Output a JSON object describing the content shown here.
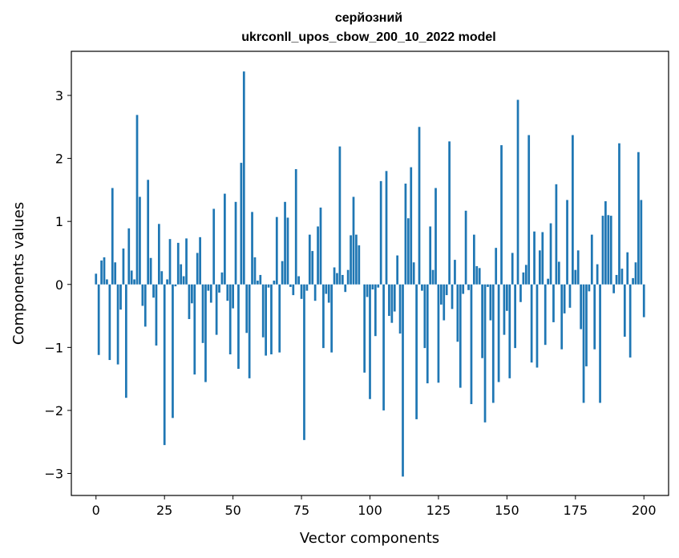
{
  "chart_data": {
    "type": "bar",
    "title_line1": "серйозний",
    "title_line2": "ukrconll_upos_cbow_200_10_2022 model",
    "xlabel": "Vector components",
    "ylabel": "Components values",
    "xlim": [
      -9,
      209
    ],
    "ylim": [
      -3.35,
      3.7
    ],
    "xticks": [
      0,
      25,
      50,
      75,
      100,
      125,
      150,
      175,
      200
    ],
    "xtick_labels": [
      "0",
      "25",
      "50",
      "75",
      "100",
      "125",
      "150",
      "175",
      "200"
    ],
    "yticks": [
      -3,
      -2,
      -1,
      0,
      1,
      2,
      3
    ],
    "ytick_labels": [
      "−3",
      "−2",
      "−1",
      "0",
      "1",
      "2",
      "3"
    ],
    "bar_color": "#1f77b4",
    "grid": false,
    "values": [
      0.17,
      -1.12,
      0.38,
      0.43,
      0.08,
      -1.2,
      1.53,
      0.35,
      -1.27,
      -0.4,
      0.57,
      -1.8,
      0.89,
      0.22,
      0.08,
      2.69,
      1.39,
      -0.34,
      -0.67,
      1.66,
      0.42,
      -0.21,
      -0.97,
      0.96,
      0.21,
      -2.55,
      0.08,
      0.72,
      -2.12,
      -0.03,
      0.66,
      0.32,
      0.13,
      0.73,
      -0.55,
      -0.3,
      -1.43,
      0.5,
      0.75,
      -0.93,
      -1.55,
      -0.1,
      -0.29,
      1.2,
      -0.8,
      -0.13,
      0.19,
      1.44,
      -0.26,
      -1.11,
      -0.38,
      1.31,
      -1.34,
      1.93,
      3.38,
      -0.77,
      -1.49,
      1.15,
      0.43,
      0.06,
      0.15,
      -0.84,
      -1.13,
      -0.05,
      -1.11,
      0.06,
      1.07,
      -1.08,
      0.37,
      1.31,
      1.06,
      -0.04,
      -0.17,
      1.83,
      0.13,
      -0.23,
      -2.47,
      -0.1,
      0.79,
      0.53,
      -0.26,
      0.92,
      1.22,
      -1.01,
      -0.15,
      -0.29,
      -1.08,
      0.27,
      0.18,
      2.19,
      0.15,
      -0.12,
      0.23,
      0.78,
      1.39,
      0.79,
      0.62,
      0.0,
      -1.4,
      -0.2,
      -1.82,
      -0.08,
      -0.82,
      -0.05,
      1.64,
      -2.0,
      1.8,
      -0.5,
      -0.61,
      -0.43,
      0.46,
      -0.78,
      -3.05,
      1.6,
      1.05,
      1.86,
      0.35,
      -2.14,
      2.5,
      -0.1,
      -1.01,
      -1.57,
      0.92,
      0.23,
      1.53,
      -1.56,
      -0.32,
      -0.57,
      -0.17,
      2.27,
      -0.39,
      0.39,
      -0.91,
      -1.64,
      -0.15,
      1.17,
      -0.09,
      -1.9,
      0.79,
      0.29,
      0.26,
      -1.17,
      -2.19,
      -0.04,
      -0.57,
      -1.88,
      0.58,
      -1.55,
      2.21,
      -0.8,
      -0.42,
      -1.49,
      0.5,
      -1.01,
      2.93,
      -0.28,
      0.19,
      0.31,
      2.37,
      -1.24,
      0.84,
      -1.32,
      0.54,
      0.83,
      -0.96,
      0.09,
      0.97,
      -0.6,
      1.59,
      0.36,
      -1.03,
      -0.46,
      1.34,
      -0.37,
      2.37,
      0.23,
      0.54,
      -0.71,
      -1.88,
      -1.3,
      -0.11,
      0.79,
      -1.03,
      0.32,
      -1.88,
      1.09,
      1.32,
      1.1,
      1.09,
      -0.14,
      0.15,
      2.24,
      0.25,
      -0.83,
      0.51,
      -1.16,
      0.1,
      0.35,
      2.1,
      1.34,
      -0.52
    ]
  }
}
